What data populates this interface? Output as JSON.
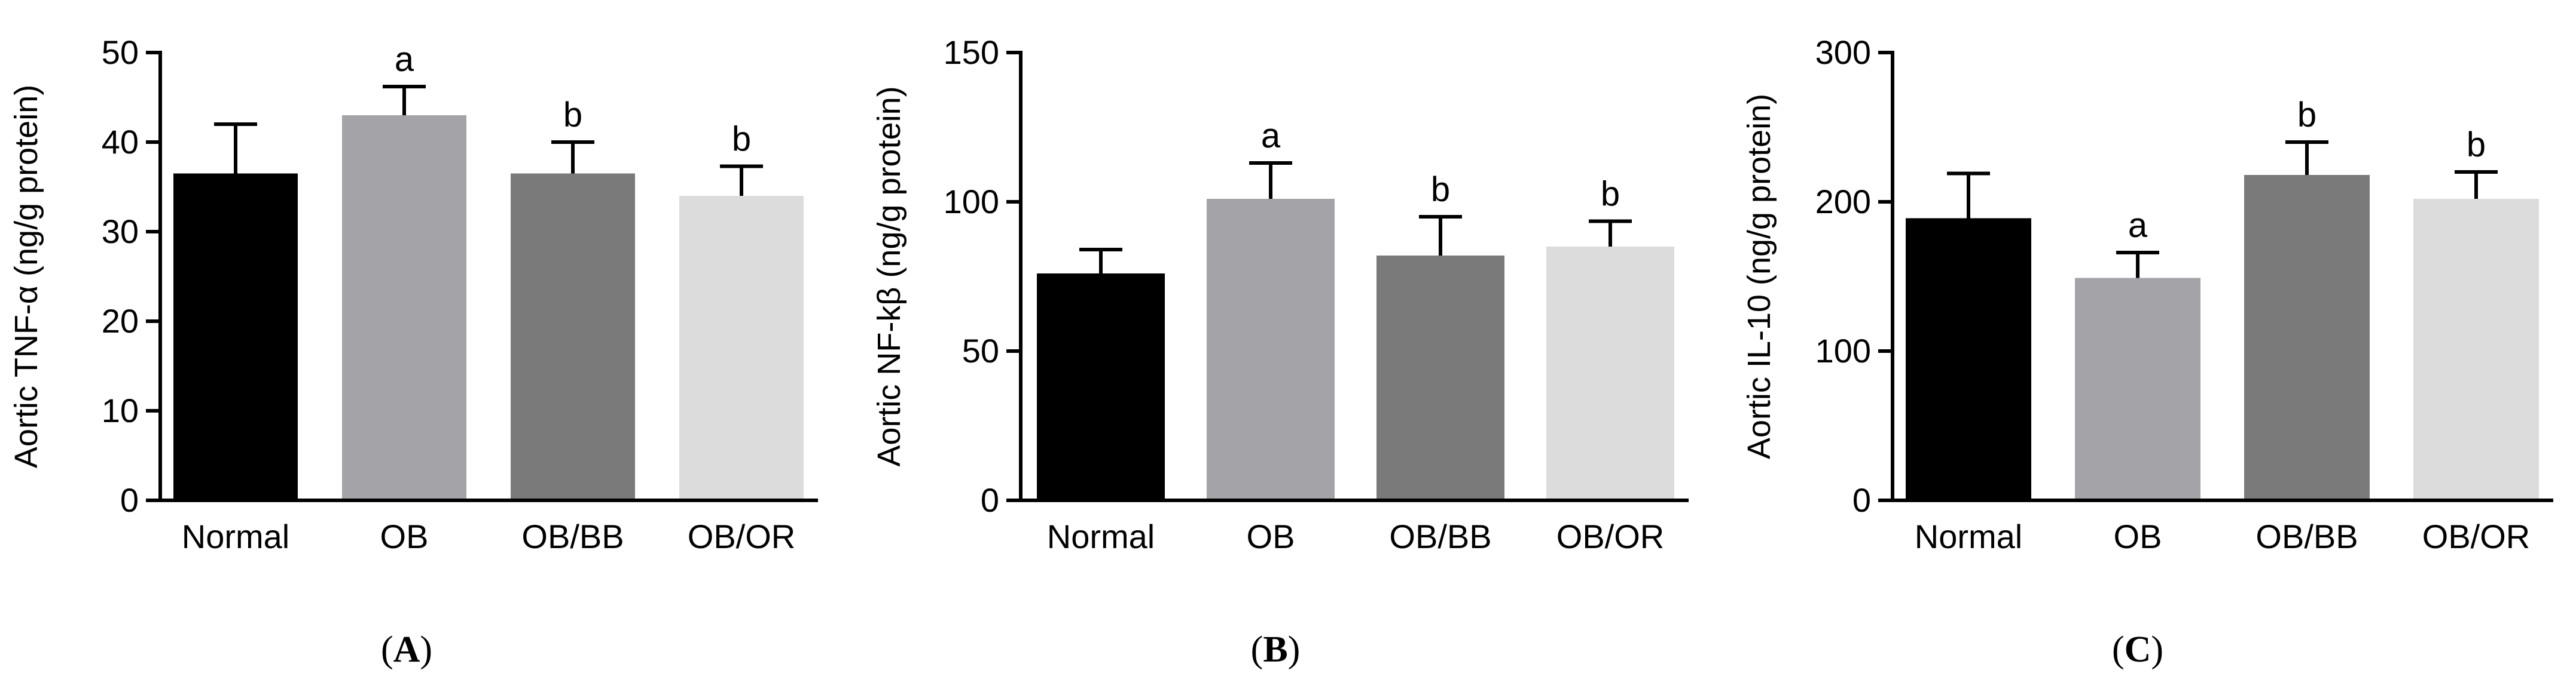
{
  "chart_data": [
    {
      "type": "bar",
      "panel_label": "A",
      "ylabel": "Aortic TNF-α (ng/g protein)",
      "categories": [
        "Normal",
        "OB",
        "OB/BB",
        "OB/OR"
      ],
      "values": [
        36.5,
        43.0,
        36.5,
        34.0
      ],
      "errors": [
        5.5,
        3.2,
        3.5,
        3.3
      ],
      "annotations": [
        "",
        "a",
        "b",
        "b"
      ],
      "ylim": [
        0,
        50
      ],
      "yticks": [
        0,
        10,
        20,
        30,
        40,
        50
      ],
      "colors": [
        "#000000",
        "#a3a3a8",
        "#7a7a7a",
        "#dcdcdc"
      ]
    },
    {
      "type": "bar",
      "panel_label": "B",
      "ylabel": "Aortic NF-kβ (ng/g protein)",
      "categories": [
        "Normal",
        "OB",
        "OB/BB",
        "OB/OR"
      ],
      "values": [
        76,
        101,
        82,
        85
      ],
      "errors": [
        8,
        12,
        13,
        8.5
      ],
      "annotations": [
        "",
        "a",
        "b",
        "b"
      ],
      "ylim": [
        0,
        150
      ],
      "yticks": [
        0,
        50,
        100,
        150
      ],
      "colors": [
        "#000000",
        "#a3a3a8",
        "#7a7a7a",
        "#dcdcdc"
      ]
    },
    {
      "type": "bar",
      "panel_label": "C",
      "ylabel": "Aortic IL-10 (ng/g protein)",
      "categories": [
        "Normal",
        "OB",
        "OB/BB",
        "OB/OR"
      ],
      "values": [
        189,
        149,
        218,
        202
      ],
      "errors": [
        30,
        17,
        22,
        18
      ],
      "annotations": [
        "",
        "a",
        "b",
        "b"
      ],
      "ylim": [
        0,
        300
      ],
      "yticks": [
        0,
        100,
        200,
        300
      ],
      "colors": [
        "#000000",
        "#a3a3a8",
        "#7a7a7a",
        "#dcdcdc"
      ]
    }
  ]
}
